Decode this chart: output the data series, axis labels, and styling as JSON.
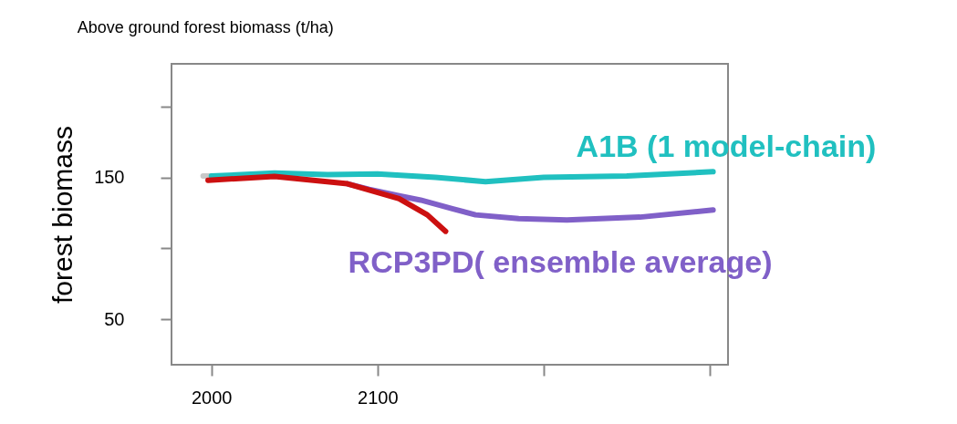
{
  "chart_data": {
    "type": "line",
    "title": "Above ground forest biomass (t/ha)",
    "ylabel": "forest  biomass",
    "xlim": [
      1976,
      2311
    ],
    "xticks": [
      2000,
      2100,
      {
        "value": 2200,
        "label": null
      },
      {
        "value": 2300,
        "label": null
      }
    ],
    "ylim": [
      18,
      230
    ],
    "yticks": [
      50,
      {
        "value": 100,
        "label": null
      },
      150,
      {
        "value": 200,
        "label": null
      }
    ],
    "grid": false,
    "marker": "none",
    "line_style": "solid",
    "series": [
      {
        "color": "#c8c8c8",
        "x": [
          1995,
          2005
        ],
        "values": [
          151,
          151
        ]
      },
      {
        "name": "A1B (1 model-chain)",
        "color": "#20c0c0",
        "x": [
          2000,
          2038,
          2070,
          2100,
          2135,
          2165,
          2200,
          2250,
          2302
        ],
        "values": [
          151,
          153,
          152,
          152.5,
          150,
          147,
          150,
          151,
          154
        ]
      },
      {
        "name": "RCP3PD( ensemble average)",
        "color": "#8060c8",
        "x": [
          2082,
          2095,
          2113,
          2126,
          2145,
          2159,
          2185,
          2214,
          2258,
          2302
        ],
        "values": [
          145.5,
          141.6,
          137,
          134,
          128,
          123.6,
          121,
          120,
          122,
          127
        ]
      },
      {
        "color": "#cc1010",
        "x": [
          1998,
          2038,
          2082,
          2113,
          2130,
          2141
        ],
        "values": [
          148,
          150.6,
          145.5,
          135,
          123.6,
          112
        ]
      }
    ]
  }
}
